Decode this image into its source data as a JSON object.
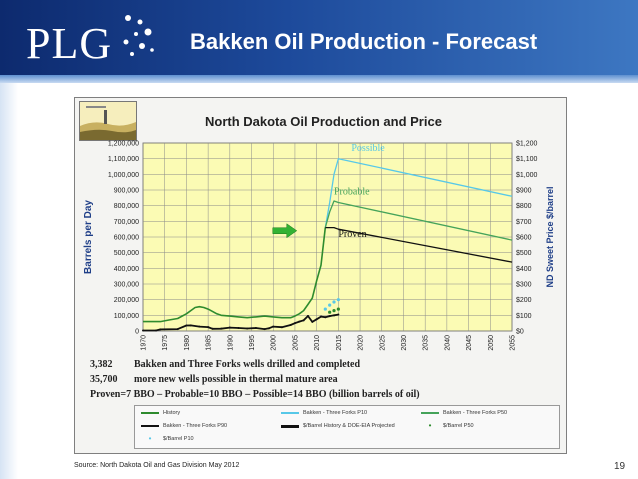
{
  "slide": {
    "logo_text": "PLG",
    "title": "Bakken Oil Production - Forecast",
    "source": "Source: North Dakota Oil and Gas Division  May 2012",
    "page_number": "19"
  },
  "stats": [
    {
      "num": "3,382",
      "text": "Bakken and Three Forks wells drilled and completed"
    },
    {
      "num": "35,700",
      "text": "more new wells possible in thermal mature area"
    }
  ],
  "proven_line": "Proven=7 BBO – Probable=10 BBO – Possible=14 BBO (billion barrels of oil)",
  "legend": [
    {
      "label": "History",
      "color": "#2e8b2e",
      "kind": "line"
    },
    {
      "label": "Bakken - Three Forks P10",
      "color": "#57c8e8",
      "kind": "line"
    },
    {
      "label": "Bakken - Three Forks P50",
      "color": "#45a35a",
      "kind": "line"
    },
    {
      "label": "Bakken - Three Forks P90",
      "color": "#111111",
      "kind": "line"
    },
    {
      "label": "$/Barrel History & DOE-EIA Projected",
      "color": "#111111",
      "kind": "line-dots"
    },
    {
      "label": "$/Barrel P50",
      "color": "#2e8b2e",
      "kind": "dots"
    },
    {
      "label": "$/Barrel P10",
      "color": "#57c8e8",
      "kind": "dots"
    }
  ],
  "colors": {
    "plot_bg": "#fbfbb4",
    "header": "#1d4a9b",
    "arrow": "#33b233"
  },
  "chart_data": {
    "type": "line",
    "title": "North Dakota Oil Production and Price",
    "ylabel": "Barrels per Day",
    "y2label": "ND Sweet Price $/barrel",
    "xlim": [
      1970,
      2055
    ],
    "ylim": [
      0,
      1200000
    ],
    "y2lim": [
      0,
      1200
    ],
    "x_ticks": [
      1970,
      1975,
      1980,
      1985,
      1990,
      1995,
      2000,
      2005,
      2010,
      2015,
      2020,
      2025,
      2030,
      2035,
      2040,
      2045,
      2050,
      2055
    ],
    "y_ticks": [
      0,
      100000,
      200000,
      300000,
      400000,
      500000,
      600000,
      700000,
      800000,
      900000,
      1000000,
      1100000,
      1200000
    ],
    "y_tick_labels": [
      "0",
      "100,000",
      "200,000",
      "300,000",
      "400,000",
      "500,000",
      "600,000",
      "700,000",
      "800,000",
      "900,000",
      "1,000,000",
      "1,100,000",
      "1,200,000"
    ],
    "y2_tick_labels": [
      "$0",
      "$100",
      "$200",
      "$300",
      "$400",
      "$500",
      "$600",
      "$700",
      "$800",
      "$900",
      "$1,000",
      "$1,100",
      "$1,200"
    ],
    "grid": true,
    "annotations": [
      {
        "text": "Possible",
        "x": 2018,
        "y": 1150000,
        "color": "#57c8e8"
      },
      {
        "text": "Probable",
        "x": 2014,
        "y": 870000,
        "color": "#45a35a"
      },
      {
        "text": "Proven",
        "x": 2015,
        "y": 600000,
        "color": "#111111"
      }
    ],
    "series": [
      {
        "name": "History",
        "color": "#2e8b2e",
        "x": [
          1970,
          1972,
          1974,
          1976,
          1978,
          1980,
          1981,
          1982,
          1983,
          1984,
          1985,
          1986,
          1987,
          1988,
          1990,
          1992,
          1994,
          1996,
          1998,
          2000,
          2002,
          2004,
          2005,
          2006,
          2007,
          2008,
          2009,
          2010,
          2011,
          2012
        ],
        "y": [
          60000,
          60000,
          60000,
          70000,
          80000,
          110000,
          130000,
          150000,
          155000,
          150000,
          140000,
          125000,
          110000,
          100000,
          95000,
          90000,
          85000,
          90000,
          95000,
          90000,
          85000,
          85000,
          95000,
          110000,
          130000,
          170000,
          210000,
          320000,
          420000,
          660000
        ]
      },
      {
        "name": "Bakken - Three Forks P10",
        "color": "#57c8e8",
        "x": [
          2012,
          2013,
          2014,
          2015,
          2055
        ],
        "y": [
          660000,
          820000,
          1000000,
          1100000,
          860000
        ]
      },
      {
        "name": "Bakken - Three Forks P50",
        "color": "#45a35a",
        "x": [
          2012,
          2013,
          2014,
          2015,
          2055
        ],
        "y": [
          660000,
          760000,
          830000,
          820000,
          580000
        ]
      },
      {
        "name": "Bakken - Three Forks P90",
        "color": "#111111",
        "x": [
          2012,
          2013,
          2014,
          2015,
          2055
        ],
        "y": [
          660000,
          660000,
          660000,
          650000,
          440000
        ]
      },
      {
        "name": "$/Barrel History & DOE-EIA Projected",
        "color": "#111111",
        "axis": "right",
        "x": [
          1970,
          1973,
          1974,
          1978,
          1980,
          1981,
          1983,
          1985,
          1986,
          1988,
          1990,
          1992,
          1994,
          1996,
          1998,
          1999,
          2000,
          2002,
          2004,
          2005,
          2006,
          2007,
          2008,
          2009,
          2010,
          2011,
          2012,
          2013,
          2014,
          2015
        ],
        "y": [
          3,
          3,
          10,
          12,
          35,
          36,
          28,
          25,
          14,
          15,
          22,
          19,
          16,
          19,
          12,
          17,
          28,
          24,
          38,
          50,
          60,
          68,
          96,
          58,
          75,
          92,
          88,
          95,
          100,
          105
        ]
      },
      {
        "name": "$/Barrel P50",
        "color": "#2e8b2e",
        "axis": "right",
        "style": "dots",
        "x": [
          2013,
          2014,
          2015
        ],
        "y": [
          120,
          130,
          140
        ]
      },
      {
        "name": "$/Barrel P10",
        "color": "#57c8e8",
        "axis": "right",
        "style": "dots",
        "x": [
          2012,
          2013,
          2014,
          2015
        ],
        "y": [
          140,
          165,
          185,
          200
        ]
      }
    ]
  }
}
